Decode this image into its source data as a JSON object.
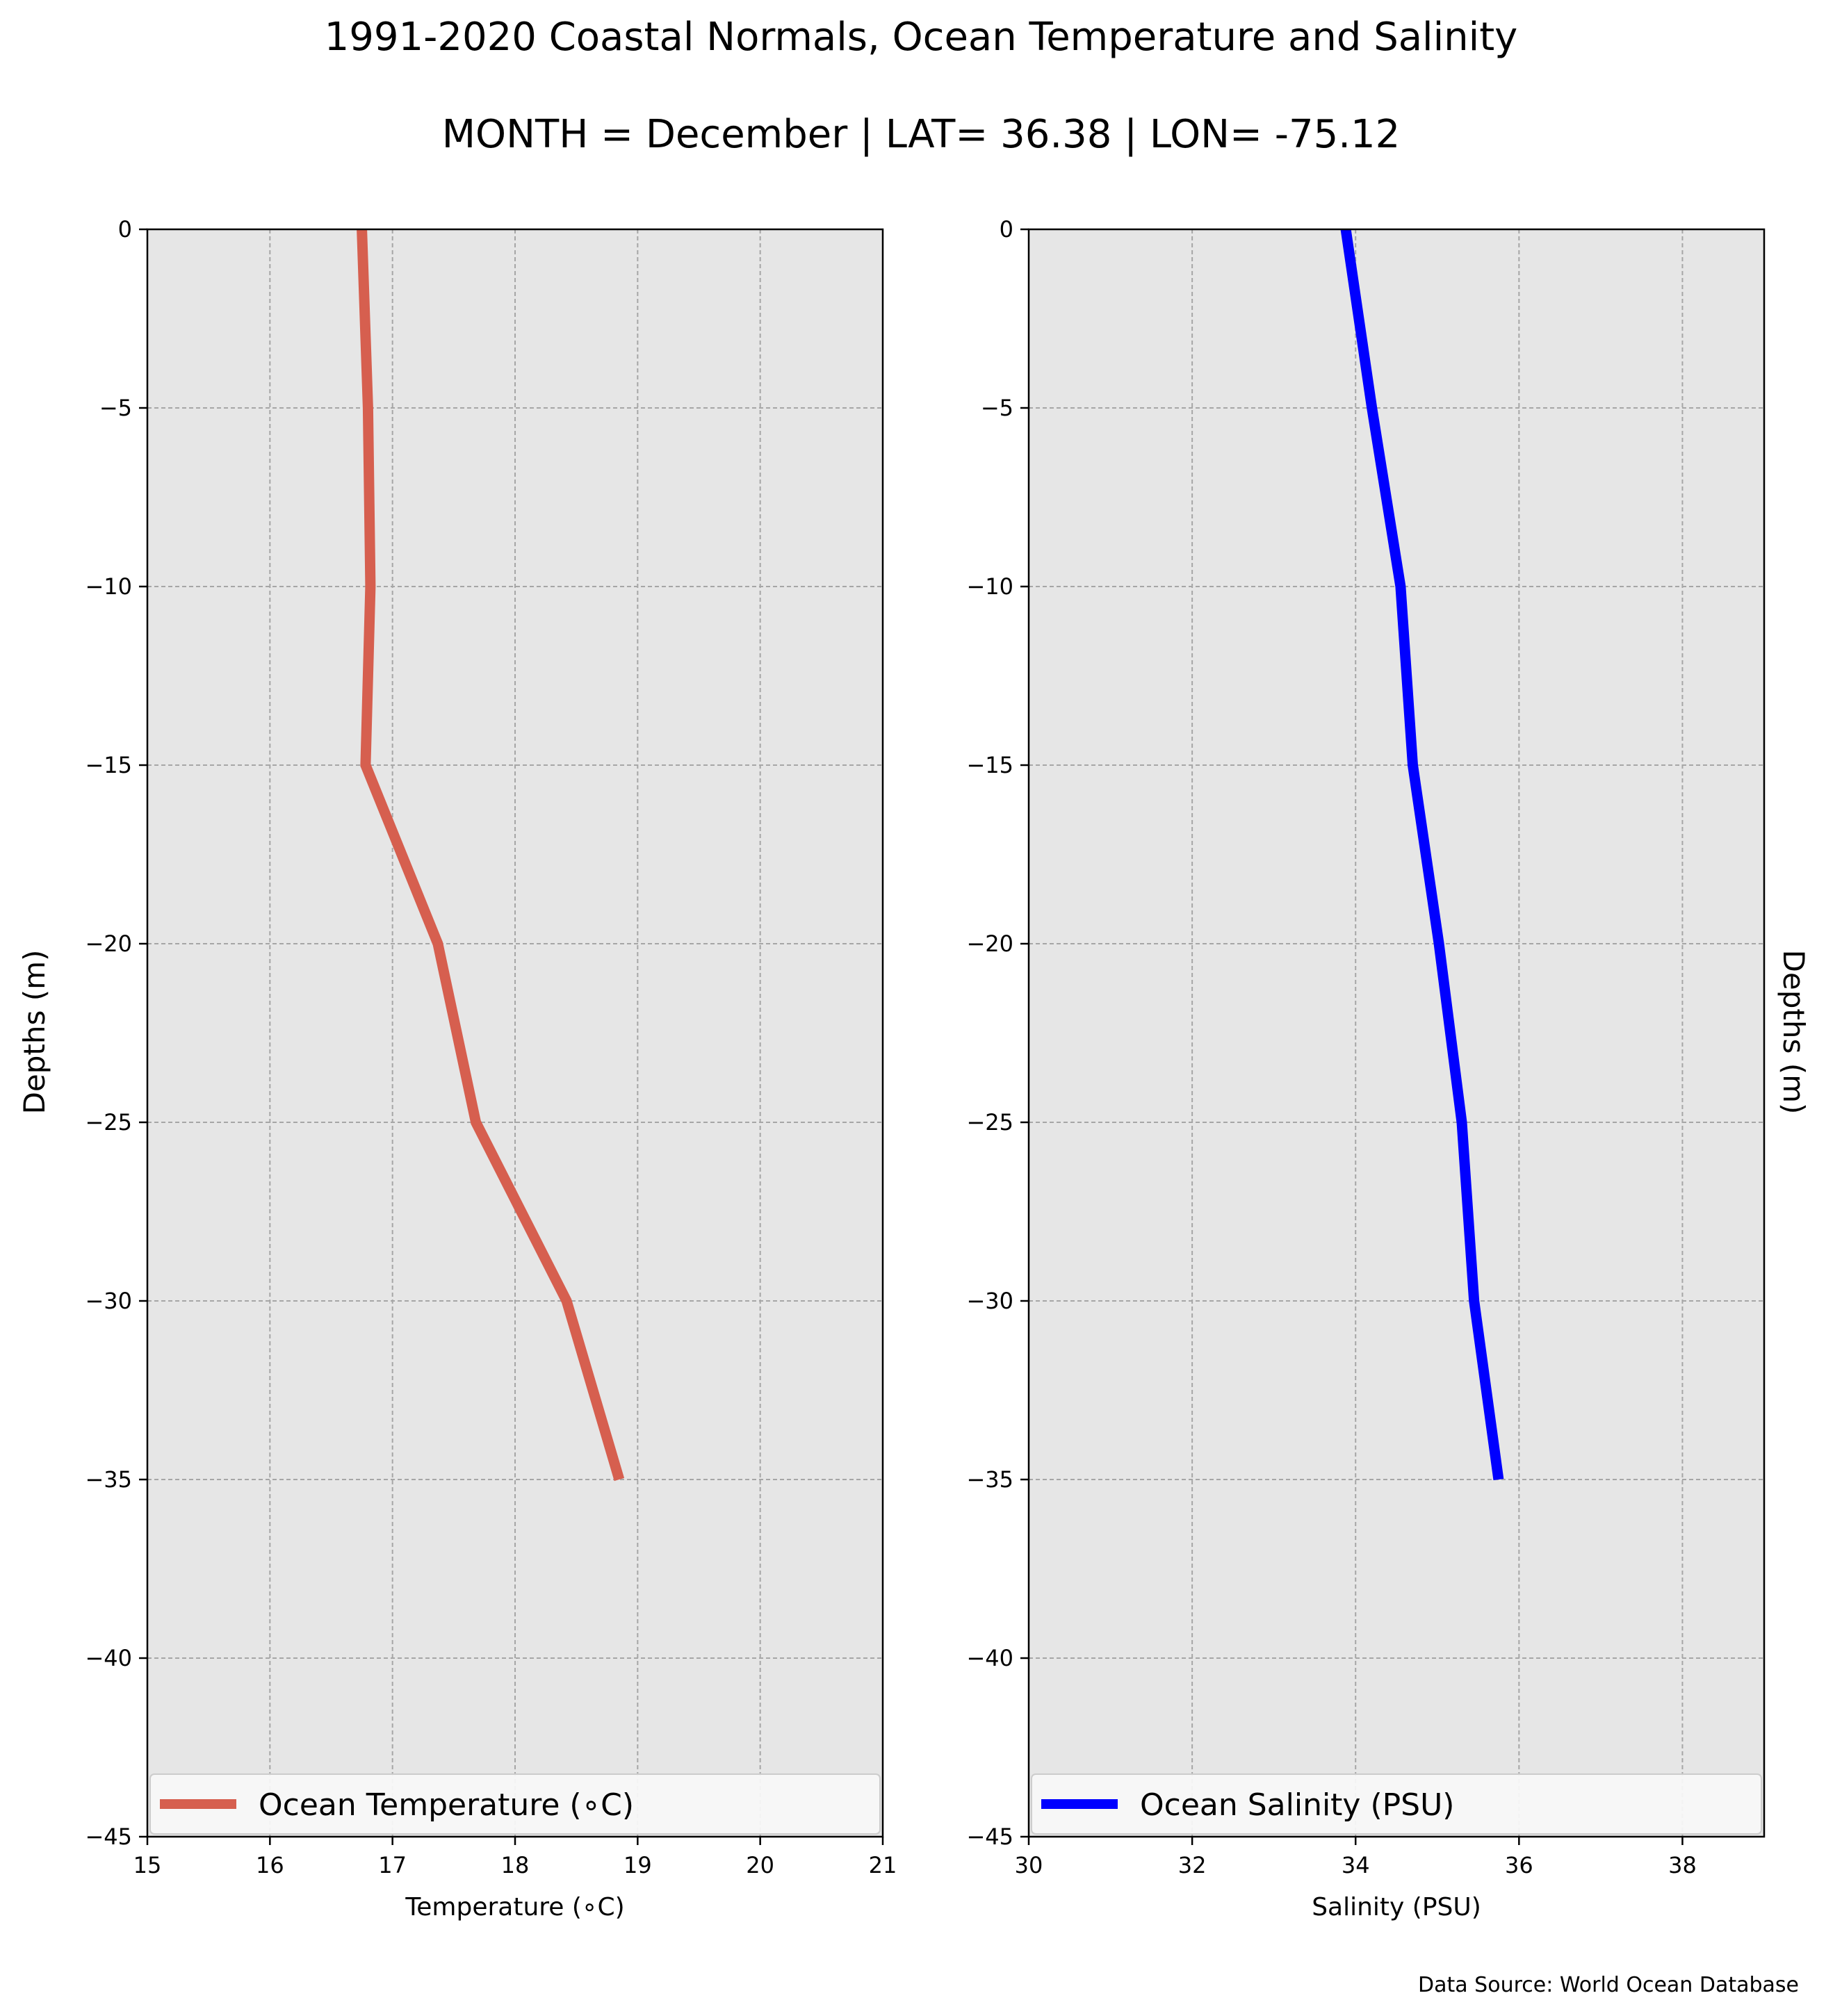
{
  "title": "1991-2020 Coastal Normals, Ocean Temperature and Salinity",
  "subtitle": "MONTH = December | LAT= 36.38 | LON= -75.12",
  "source": "Data Source: World Ocean Database",
  "colors": {
    "temperature": "#d65f4f",
    "salinity": "#0000ff",
    "axes_bg": "#e6e6e6",
    "grid": "#a6a6a6"
  },
  "chart_data": [
    {
      "type": "line",
      "xlabel": "Temperature (∘C)",
      "ylabel": "Depths (m)",
      "xlim": [
        15,
        21
      ],
      "ylim": [
        -45,
        0
      ],
      "xticks": [
        15,
        16,
        17,
        18,
        19,
        20,
        21
      ],
      "yticks": [
        0,
        -5,
        -10,
        -15,
        -20,
        -25,
        -30,
        -35,
        -40,
        -45
      ],
      "grid": true,
      "legend_position": "bottom",
      "series": [
        {
          "name": "Ocean Temperature (∘C)",
          "x": [
            16.75,
            16.8,
            16.82,
            16.78,
            17.37,
            17.68,
            18.42,
            18.85
          ],
          "y": [
            0,
            -5,
            -10,
            -15,
            -20,
            -25,
            -30,
            -35
          ]
        }
      ]
    },
    {
      "type": "line",
      "xlabel": "Salinity (PSU)",
      "ylabel": "Depths (m)",
      "xlim": [
        30,
        39
      ],
      "ylim": [
        -45,
        0
      ],
      "xticks": [
        30,
        32,
        34,
        36,
        38
      ],
      "yticks": [
        0,
        -5,
        -10,
        -15,
        -20,
        -25,
        -30,
        -35,
        -40,
        -45
      ],
      "grid": true,
      "legend_position": "bottom",
      "series": [
        {
          "name": "Ocean Salinity (PSU)",
          "x": [
            33.88,
            34.2,
            34.55,
            34.7,
            35.02,
            35.3,
            35.45,
            35.75
          ],
          "y": [
            0,
            -5,
            -10,
            -15,
            -20,
            -25,
            -30,
            -35
          ]
        }
      ]
    }
  ]
}
